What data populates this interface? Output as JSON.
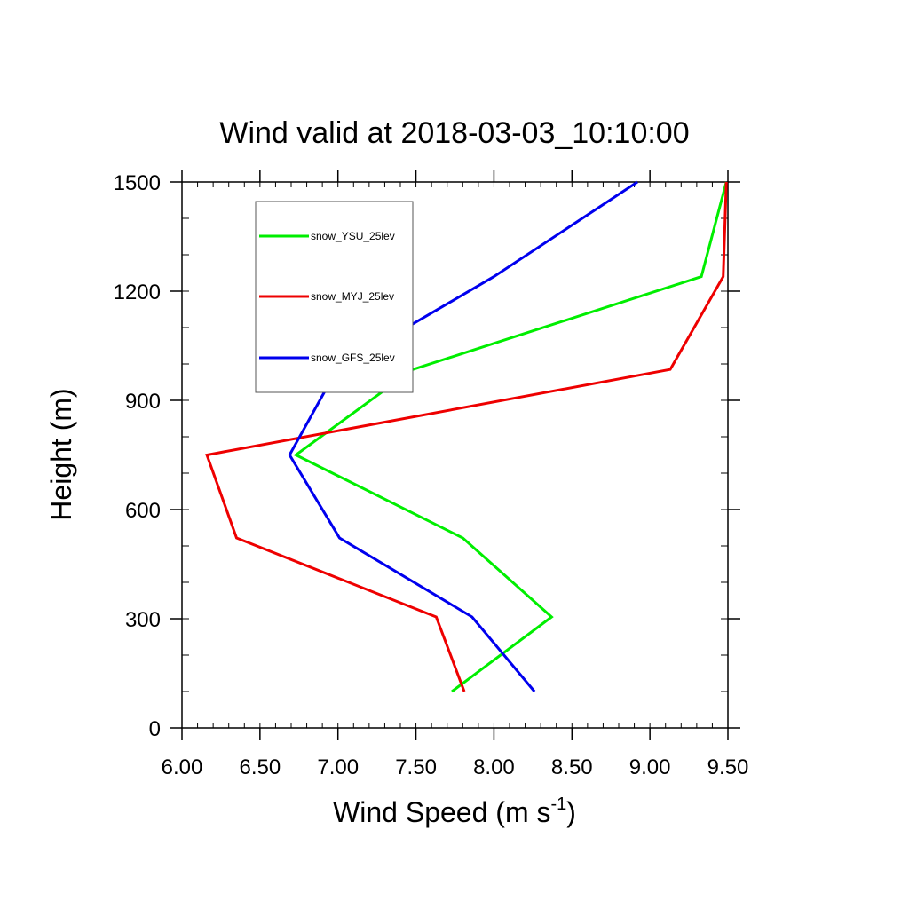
{
  "chart_data": {
    "type": "line",
    "title": "Wind valid at 2018-03-03_10:10:00",
    "xlabel": "Wind Speed (m s",
    "xlabel_superscript": "-1",
    "xlabel_close": ")",
    "ylabel": "Height (m)",
    "xlim": [
      6.0,
      9.5
    ],
    "ylim": [
      0,
      1500
    ],
    "xticks": [
      "6.00",
      "6.50",
      "7.00",
      "7.50",
      "8.00",
      "8.50",
      "9.00",
      "9.50"
    ],
    "yticks": [
      "0",
      "300",
      "600",
      "900",
      "1200",
      "1500"
    ],
    "legend_position": "top-left",
    "series": [
      {
        "name": "snow_YSU_25lev",
        "color": "#00ee00",
        "points": [
          [
            7.73,
            100
          ],
          [
            8.37,
            305
          ],
          [
            7.8,
            522
          ],
          [
            6.73,
            750
          ],
          [
            7.48,
            985
          ],
          [
            9.33,
            1240
          ],
          [
            9.49,
            1500
          ]
        ]
      },
      {
        "name": "snow_MYJ_25lev",
        "color": "#ee0000",
        "points": [
          [
            7.81,
            100
          ],
          [
            7.63,
            305
          ],
          [
            6.35,
            522
          ],
          [
            6.16,
            750
          ],
          [
            9.13,
            985
          ],
          [
            9.47,
            1240
          ],
          [
            9.49,
            1500
          ]
        ]
      },
      {
        "name": "snow_GFS_25lev",
        "color": "#0000ee",
        "points": [
          [
            8.26,
            100
          ],
          [
            7.86,
            305
          ],
          [
            7.01,
            522
          ],
          [
            6.69,
            750
          ],
          [
            7.0,
            990
          ],
          [
            8.0,
            1240
          ],
          [
            8.92,
            1500
          ]
        ]
      }
    ]
  }
}
